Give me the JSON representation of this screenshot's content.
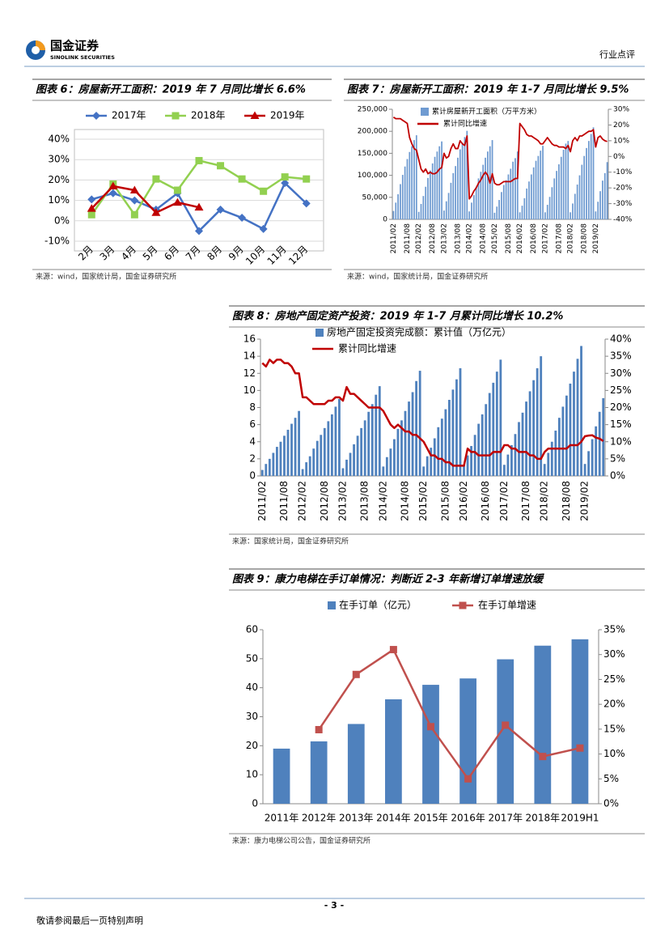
{
  "header": {
    "logo_cn": "国金证券",
    "logo_en": "SINOLINK SECURITIES",
    "section": "行业点评"
  },
  "chart_data": [
    {
      "type": "line",
      "title": "图表 6：房屋新开工面积：2019 年 7 月同比增长 6.6%",
      "source": "来源：wind，国家统计局，国金证券研究所",
      "categories": [
        "2月",
        "3月",
        "4月",
        "5月",
        "6月",
        "7月",
        "8月",
        "9月",
        "10月",
        "11月",
        "12月"
      ],
      "series": [
        {
          "name": "2017年",
          "color": "#4472c4",
          "marker": "diamond",
          "values": [
            10.5,
            13.5,
            10,
            5.5,
            13.5,
            -5,
            5.5,
            1.5,
            -4,
            18.5,
            8.5
          ]
        },
        {
          "name": "2018年",
          "color": "#92d050",
          "marker": "square",
          "values": [
            3,
            18,
            3,
            20.5,
            15,
            29.5,
            27,
            20.5,
            14.5,
            21.5,
            20.5
          ]
        },
        {
          "name": "2019年",
          "color": "#c00000",
          "marker": "triangle",
          "values": [
            6,
            17,
            15,
            4,
            9,
            6.6,
            null,
            null,
            null,
            null,
            null
          ]
        }
      ],
      "ylim": [
        -10,
        40
      ],
      "yticks": [
        {
          "value": -10,
          "label": "-10%"
        },
        {
          "value": 0,
          "label": "0%"
        },
        {
          "value": 10,
          "label": "10%"
        },
        {
          "value": 20,
          "label": "20%"
        },
        {
          "value": 30,
          "label": "30%"
        },
        {
          "value": 40,
          "label": "40%"
        }
      ],
      "grid": true,
      "legend": "top"
    },
    {
      "type": "combo",
      "title": "图表 7：房屋新开工面积：2019 年 1-7 月同比增长 9.5%",
      "source": "来源：wind，国家统计局，国金证券研究所",
      "categories": [
        "2011/02",
        null,
        null,
        null,
        null,
        null,
        "2011/08",
        null,
        null,
        null,
        null,
        "2012/02",
        null,
        null,
        null,
        null,
        null,
        "2012/08",
        null,
        null,
        null,
        null,
        "2013/02",
        null,
        null,
        null,
        null,
        null,
        "2013/08",
        null,
        null,
        null,
        null,
        "2014/02",
        null,
        null,
        null,
        null,
        null,
        "2014/08",
        null,
        null,
        null,
        null,
        "2015/02",
        null,
        null,
        null,
        null,
        null,
        "2015/08",
        null,
        null,
        null,
        null,
        "2016/02",
        null,
        null,
        null,
        null,
        null,
        "2016/08",
        null,
        null,
        null,
        null,
        "2017/02",
        null,
        null,
        null,
        null,
        null,
        "2017/08",
        null,
        null,
        null,
        null,
        "2018/02",
        null,
        null,
        null,
        null,
        null,
        "2018/08",
        null,
        null,
        null,
        null,
        "2019/02",
        null,
        null,
        null,
        null,
        null
      ],
      "series": [
        {
          "name": "累计房屋新开工面积（万平方米）",
          "type": "bar",
          "color": "#6f9bd1",
          "values": [
            19000,
            38000,
            57000,
            80000,
            101000,
            120000,
            137000,
            153000,
            166000,
            180000,
            191000,
            17000,
            35000,
            53000,
            74000,
            94000,
            111000,
            127000,
            142000,
            154000,
            166000,
            177000,
            20000,
            41000,
            60000,
            83000,
            105000,
            121000,
            140000,
            159000,
            174000,
            187000,
            201000,
            18000,
            38000,
            55000,
            74000,
            93000,
            108000,
            124000,
            140000,
            154000,
            166000,
            180000,
            15000,
            29000,
            44000,
            62000,
            78000,
            89000,
            102000,
            115000,
            131000,
            139000,
            154000,
            16000,
            31000,
            48000,
            70000,
            86000,
            102000,
            118000,
            133000,
            144000,
            156000,
            167000,
            16000,
            33000,
            51000,
            73000,
            93000,
            110000,
            125000,
            142000,
            158000,
            172000,
            178000,
            16000,
            36000,
            58000,
            79000,
            100000,
            124000,
            144000,
            162000,
            178000,
            194000,
            209000,
            18000,
            40000,
            64000,
            88000,
            105000,
            130000
          ]
        },
        {
          "name": "累计同比增速",
          "type": "line",
          "axis": "y2",
          "color": "#c00000",
          "values": [
            25,
            24,
            24,
            24,
            23,
            22,
            21,
            12,
            8,
            5,
            4,
            -2,
            -8,
            -10,
            -8,
            -11,
            -10,
            -11,
            -11,
            -10,
            -8,
            -7,
            2,
            -1,
            0,
            5,
            8,
            5,
            5,
            10,
            8,
            7,
            13,
            -27,
            -25,
            -22,
            -20,
            -17,
            -15,
            -12,
            -10,
            -12,
            -17,
            -11,
            -17,
            -18,
            -18,
            -17,
            -16,
            -16,
            -16,
            -16,
            -15,
            -14,
            -14,
            21,
            19,
            17,
            14,
            13,
            13,
            12,
            11,
            10,
            8,
            8,
            10,
            12,
            10,
            8,
            7,
            7,
            6,
            6,
            6,
            5,
            7,
            3,
            10,
            12,
            10,
            13,
            13,
            14,
            15,
            16,
            16,
            17,
            6,
            12,
            13,
            11,
            10,
            9.5
          ]
        }
      ],
      "ylim": [
        0,
        250000
      ],
      "yticks": [
        0,
        {
          "value": 50000,
          "label": "50,000"
        },
        {
          "value": 100000,
          "label": "100,000"
        },
        {
          "value": 150000,
          "label": "150,000"
        },
        {
          "value": 200000,
          "label": "200,000"
        },
        {
          "value": 250000,
          "label": "250,000"
        }
      ],
      "y2lim": [
        -40,
        30
      ],
      "y2ticks": [
        {
          "value": -40,
          "label": "-40%"
        },
        {
          "value": -30,
          "label": "-30%"
        },
        {
          "value": -20,
          "label": "-20%"
        },
        {
          "value": -10,
          "label": "-10%"
        },
        {
          "value": 0,
          "label": "0%"
        },
        {
          "value": 10,
          "label": "10%"
        },
        {
          "value": 20,
          "label": "20%"
        },
        {
          "value": 30,
          "label": "30%"
        }
      ],
      "grid": false,
      "legend": "top-left"
    },
    {
      "type": "combo",
      "title": "图表 8：房地产固定资产投资：2019 年 1-7 月累计同比增长 10.2%",
      "source": "来源：国家统计局，国金证券研究所",
      "categories": [
        "2011/02",
        null,
        null,
        null,
        null,
        null,
        "2011/08",
        null,
        null,
        null,
        null,
        "2012/02",
        null,
        null,
        null,
        null,
        null,
        "2012/08",
        null,
        null,
        null,
        null,
        "2013/02",
        null,
        null,
        null,
        null,
        null,
        "2013/08",
        null,
        null,
        null,
        null,
        "2014/02",
        null,
        null,
        null,
        null,
        null,
        "2014/08",
        null,
        null,
        null,
        null,
        "2015/02",
        null,
        null,
        null,
        null,
        null,
        "2015/08",
        null,
        null,
        null,
        null,
        "2016/02",
        null,
        null,
        null,
        null,
        null,
        "2016/08",
        null,
        null,
        null,
        null,
        "2017/02",
        null,
        null,
        null,
        null,
        null,
        "2017/08",
        null,
        null,
        null,
        null,
        "2018/02",
        null,
        null,
        null,
        null,
        null,
        "2018/08",
        null,
        null,
        null,
        null,
        "2019/02",
        null,
        null,
        null,
        null,
        null
      ],
      "series": [
        {
          "name": "房地产固定投资完成额：累计值（万亿元）",
          "type": "bar",
          "color": "#4f81bd",
          "values": [
            0.7,
            1.4,
            2.0,
            2.7,
            3.4,
            4.0,
            4.7,
            5.4,
            6.1,
            6.8,
            7.6,
            0.8,
            1.6,
            2.3,
            3.2,
            4.1,
            4.8,
            5.6,
            6.4,
            7.2,
            8.1,
            9.0,
            0.9,
            1.9,
            2.7,
            3.7,
            4.7,
            5.6,
            6.5,
            7.5,
            8.4,
            9.5,
            10.5,
            1.1,
            2.2,
            3.2,
            4.3,
            5.5,
            6.5,
            7.6,
            8.7,
            9.8,
            11.1,
            12.3,
            1.1,
            2.3,
            3.3,
            4.4,
            5.7,
            6.7,
            7.8,
            8.9,
            10.1,
            11.3,
            12.6,
            1.2,
            2.4,
            3.5,
            4.8,
            6.1,
            7.2,
            8.4,
            9.7,
            10.9,
            12.2,
            13.6,
            1.3,
            2.5,
            3.6,
            4.9,
            6.3,
            7.4,
            8.7,
            9.9,
            11.2,
            12.6,
            14.0,
            1.4,
            2.7,
            4.0,
            5.3,
            6.8,
            8.1,
            9.4,
            10.8,
            12.2,
            13.7,
            15.2,
            1.4,
            2.9,
            4.3,
            5.8,
            7.5,
            9.1
          ]
        },
        {
          "name": "累计同比增速",
          "type": "line",
          "axis": "y2",
          "color": "#c00000",
          "values": [
            33,
            32,
            34,
            33,
            34,
            34,
            33,
            33,
            32,
            30,
            30,
            23,
            23,
            22,
            21,
            21,
            21,
            21,
            22,
            22,
            23,
            23,
            22,
            26,
            24,
            24,
            23,
            22,
            21,
            20,
            20,
            20,
            20,
            19,
            17,
            15,
            14,
            15,
            14,
            13,
            13,
            12,
            12,
            11,
            10,
            8,
            6,
            6,
            5,
            5,
            4,
            4,
            3,
            3,
            3,
            3,
            8,
            7,
            7,
            6,
            6,
            6,
            6,
            7,
            7,
            7,
            9,
            9,
            8,
            8,
            7,
            7,
            7,
            6,
            6,
            5,
            5,
            7,
            8,
            8,
            8,
            8,
            8,
            8,
            9,
            9,
            9,
            10,
            11.6,
            11.8,
            11.9,
            11.2,
            10.9,
            10.2
          ]
        }
      ],
      "ylim": [
        0,
        16
      ],
      "yticks": [
        0,
        2,
        4,
        6,
        8,
        10,
        12,
        14,
        16
      ],
      "y2lim": [
        0,
        40
      ],
      "y2ticks": [
        {
          "value": 0,
          "label": "0%"
        },
        {
          "value": 5,
          "label": "5%"
        },
        {
          "value": 10,
          "label": "10%"
        },
        {
          "value": 15,
          "label": "15%"
        },
        {
          "value": 20,
          "label": "20%"
        },
        {
          "value": 25,
          "label": "25%"
        },
        {
          "value": 30,
          "label": "30%"
        },
        {
          "value": 35,
          "label": "35%"
        },
        {
          "value": 40,
          "label": "40%"
        }
      ],
      "grid": false,
      "legend": "top-left"
    },
    {
      "type": "combo",
      "title": "图表 9：康力电梯在手订单情况：判断近 2-3 年新增订单增速放缓",
      "source": "来源：康力电梯公司公告，国金证券研究所",
      "categories": [
        "2011年",
        "2012年",
        "2013年",
        "2014年",
        "2015年",
        "2016年",
        "2017年",
        "2018年",
        "2019H1"
      ],
      "series": [
        {
          "name": "在手订单（亿元）",
          "type": "bar",
          "color": "#4f81bd",
          "values": [
            19,
            21.5,
            27.5,
            36,
            41,
            43.2,
            49.8,
            54.5,
            56.7
          ]
        },
        {
          "name": "在手订单增速",
          "type": "line",
          "axis": "y2",
          "color": "#c0504d",
          "marker": "square",
          "values": [
            null,
            14.9,
            26,
            31,
            15.5,
            5,
            15.8,
            9.5,
            11.2
          ]
        }
      ],
      "ylim": [
        0,
        60
      ],
      "yticks": [
        0,
        10,
        20,
        30,
        40,
        50,
        60
      ],
      "y2lim": [
        0,
        35
      ],
      "y2ticks": [
        {
          "value": 0,
          "label": "0%"
        },
        {
          "value": 5,
          "label": "5%"
        },
        {
          "value": 10,
          "label": "10%"
        },
        {
          "value": 15,
          "label": "15%"
        },
        {
          "value": 20,
          "label": "20%"
        },
        {
          "value": 25,
          "label": "25%"
        },
        {
          "value": 30,
          "label": "30%"
        },
        {
          "value": 35,
          "label": "35%"
        }
      ],
      "grid": false,
      "legend": "top"
    }
  ],
  "footer": {
    "page": "- 3 -",
    "disclaimer": "敬请参阅最后一页特别声明"
  }
}
